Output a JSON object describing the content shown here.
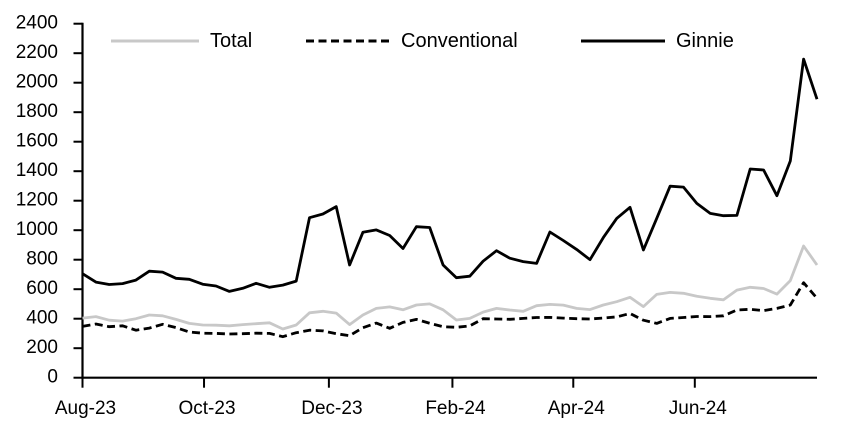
{
  "chart_data": {
    "type": "line",
    "title": "",
    "x_axis": {
      "tick_labels": [
        "Aug-23",
        "Oct-23",
        "Dec-23",
        "Feb-24",
        "Apr-24",
        "Jun-24"
      ],
      "tick_week_positions": [
        0,
        9.1,
        18.45,
        27.7,
        36.75,
        45.85
      ],
      "unit": "week",
      "num_points": 56
    },
    "y_axis": {
      "min": 0,
      "max": 2400,
      "tick_step": 200,
      "tick_labels": [
        "0",
        "200",
        "400",
        "600",
        "800",
        "1000",
        "1200",
        "1400",
        "1600",
        "1800",
        "2000",
        "2200",
        "2400"
      ]
    },
    "grid": false,
    "legend_position": "top-inside",
    "series": [
      {
        "name": "Total",
        "color": "#c8c8c8",
        "line_style": "solid",
        "values": [
          404,
          414,
          390,
          384,
          400,
          425,
          420,
          395,
          368,
          357,
          356,
          352,
          360,
          366,
          372,
          330,
          357,
          440,
          450,
          438,
          360,
          425,
          470,
          480,
          460,
          493,
          500,
          460,
          391,
          402,
          445,
          470,
          459,
          450,
          488,
          497,
          492,
          470,
          462,
          493,
          515,
          545,
          482,
          565,
          578,
          572,
          552,
          538,
          528,
          594,
          613,
          605,
          567,
          658,
          893,
          764
        ]
      },
      {
        "name": "Conventional",
        "color": "#000000",
        "line_style": "dashed",
        "values": [
          348,
          364,
          346,
          352,
          322,
          336,
          362,
          340,
          310,
          302,
          300,
          296,
          298,
          302,
          300,
          278,
          305,
          322,
          317,
          298,
          285,
          339,
          370,
          335,
          375,
          395,
          369,
          346,
          342,
          351,
          400,
          398,
          396,
          402,
          408,
          409,
          404,
          400,
          398,
          405,
          412,
          435,
          390,
          368,
          402,
          408,
          415,
          414,
          420,
          459,
          464,
          455,
          470,
          493,
          644,
          538
        ]
      },
      {
        "name": "Ginnie",
        "color": "#000000",
        "line_style": "solid",
        "values": [
          705,
          648,
          632,
          638,
          662,
          722,
          716,
          674,
          667,
          634,
          622,
          585,
          606,
          640,
          613,
          628,
          655,
          1085,
          1110,
          1160,
          764,
          986,
          1002,
          964,
          876,
          1024,
          1018,
          764,
          678,
          688,
          790,
          861,
          810,
          787,
          775,
          988,
          930,
          870,
          800,
          950,
          1080,
          1155,
          866,
          1080,
          1298,
          1292,
          1182,
          1114,
          1098,
          1100,
          1415,
          1408,
          1234,
          1469,
          2160,
          1888
        ]
      }
    ]
  },
  "colors": {
    "background": "#ffffff",
    "axis": "#000000",
    "text": "#000000",
    "total_line": "#c8c8c8"
  }
}
